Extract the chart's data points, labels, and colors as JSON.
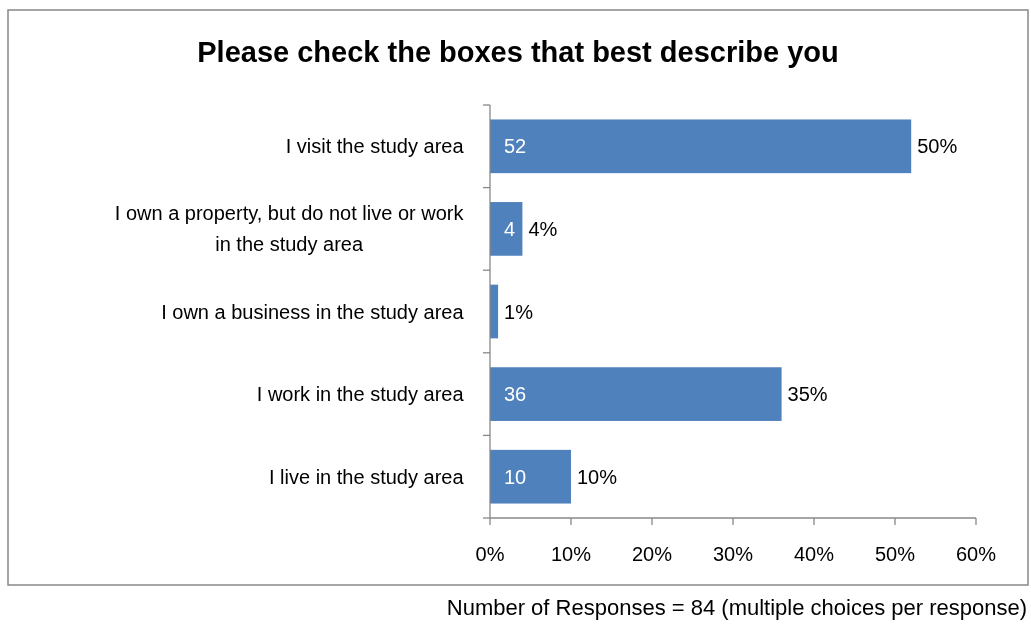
{
  "chart_data": {
    "type": "bar",
    "orientation": "horizontal",
    "title": "Please check the boxes that best describe you",
    "categories": [
      "I visit the study area",
      "I own a property, but do not live or work in the study area",
      "I own a business in the study area",
      "I work in the study area",
      "I live in the study area"
    ],
    "values": [
      52,
      4,
      1,
      36,
      10
    ],
    "color": "#4f81bd",
    "value_labels": [
      "52",
      "4",
      null,
      "36",
      "10"
    ],
    "xlim": [
      0,
      60
    ],
    "xticks": [
      {
        "value": 0,
        "label": "0%"
      },
      {
        "value": 10,
        "label": "10%"
      },
      {
        "value": 20,
        "label": "20%"
      },
      {
        "value": 30,
        "label": "30%"
      },
      {
        "value": 40,
        "label": "40%"
      },
      {
        "value": 50,
        "label": "50%"
      },
      {
        "value": 60,
        "label": "60%"
      }
    ],
    "grid": false,
    "annotations": [
      {
        "text": "50%",
        "x": 52,
        "y": "I visit the study area"
      },
      {
        "text": "4%",
        "x": 4,
        "y": "I own a property, but do not live or work in the study area"
      },
      {
        "text": "1%",
        "x": 1,
        "y": "I own a business in the study area"
      },
      {
        "text": "35%",
        "x": 36,
        "y": "I work in the study area"
      },
      {
        "text": "10%",
        "x": 10,
        "y": "I live in the study area"
      },
      "Number of Responses = 84 (multiple choices per response)"
    ]
  }
}
